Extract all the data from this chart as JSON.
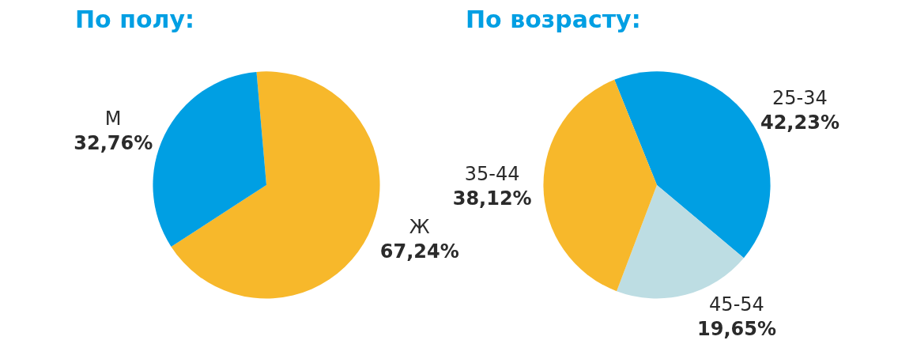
{
  "chart_data": [
    {
      "type": "pie",
      "title": "По полу:",
      "categories": [
        "Ж",
        "М"
      ],
      "values": [
        67.24,
        32.76
      ],
      "colors": [
        "#f7b82b",
        "#009fe3"
      ],
      "value_labels": [
        "67,24%",
        "32,76%"
      ]
    },
    {
      "type": "pie",
      "title": "По возрасту:",
      "categories": [
        "25-34",
        "45-54",
        "35-44"
      ],
      "values": [
        42.23,
        19.65,
        38.12
      ],
      "colors": [
        "#009fe3",
        "#bddde3",
        "#f7b82b"
      ],
      "value_labels": [
        "42,23%",
        "19,65%",
        "38,12%"
      ]
    }
  ]
}
